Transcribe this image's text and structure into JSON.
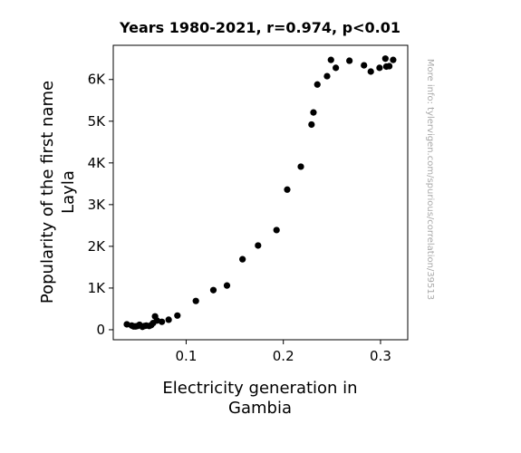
{
  "chart_data": {
    "type": "scatter",
    "title": "Years 1980-2021, r=0.974, p<0.01",
    "xlabel_lines": [
      "Electricity generation in",
      "Gambia"
    ],
    "ylabel_lines": [
      "Popularity of the first name",
      "Layla"
    ],
    "side_note": "More info: tylervigen.com/spurious/correlation/39513",
    "xlim": [
      0.025,
      0.328
    ],
    "ylim": [
      -240,
      6820
    ],
    "xticks": [
      {
        "value": 0.1,
        "label": "0.1"
      },
      {
        "value": 0.2,
        "label": "0.2"
      },
      {
        "value": 0.3,
        "label": "0.3"
      }
    ],
    "yticks": [
      {
        "value": 0,
        "label": "0"
      },
      {
        "value": 1000,
        "label": "1K"
      },
      {
        "value": 2000,
        "label": "2K"
      },
      {
        "value": 3000,
        "label": "3K"
      },
      {
        "value": 4000,
        "label": "4K"
      },
      {
        "value": 5000,
        "label": "5K"
      },
      {
        "value": 6000,
        "label": "6K"
      }
    ],
    "grid": false,
    "marker_color": "#000000",
    "points": [
      {
        "x": 0.039,
        "y": 130
      },
      {
        "x": 0.044,
        "y": 100
      },
      {
        "x": 0.046,
        "y": 80
      },
      {
        "x": 0.048,
        "y": 80
      },
      {
        "x": 0.05,
        "y": 90
      },
      {
        "x": 0.052,
        "y": 120
      },
      {
        "x": 0.055,
        "y": 70
      },
      {
        "x": 0.057,
        "y": 90
      },
      {
        "x": 0.059,
        "y": 100
      },
      {
        "x": 0.062,
        "y": 90
      },
      {
        "x": 0.064,
        "y": 110
      },
      {
        "x": 0.066,
        "y": 160
      },
      {
        "x": 0.068,
        "y": 320
      },
      {
        "x": 0.07,
        "y": 220
      },
      {
        "x": 0.075,
        "y": 190
      },
      {
        "x": 0.082,
        "y": 240
      },
      {
        "x": 0.091,
        "y": 340
      },
      {
        "x": 0.11,
        "y": 690
      },
      {
        "x": 0.128,
        "y": 950
      },
      {
        "x": 0.142,
        "y": 1060
      },
      {
        "x": 0.158,
        "y": 1690
      },
      {
        "x": 0.174,
        "y": 2020
      },
      {
        "x": 0.193,
        "y": 2390
      },
      {
        "x": 0.204,
        "y": 3360
      },
      {
        "x": 0.218,
        "y": 3910
      },
      {
        "x": 0.229,
        "y": 4920
      },
      {
        "x": 0.231,
        "y": 5210
      },
      {
        "x": 0.235,
        "y": 5880
      },
      {
        "x": 0.245,
        "y": 6080
      },
      {
        "x": 0.249,
        "y": 6470
      },
      {
        "x": 0.254,
        "y": 6280
      },
      {
        "x": 0.268,
        "y": 6450
      },
      {
        "x": 0.283,
        "y": 6340
      },
      {
        "x": 0.29,
        "y": 6190
      },
      {
        "x": 0.299,
        "y": 6280
      },
      {
        "x": 0.305,
        "y": 6500
      },
      {
        "x": 0.306,
        "y": 6310
      },
      {
        "x": 0.309,
        "y": 6320
      },
      {
        "x": 0.313,
        "y": 6470
      }
    ]
  }
}
